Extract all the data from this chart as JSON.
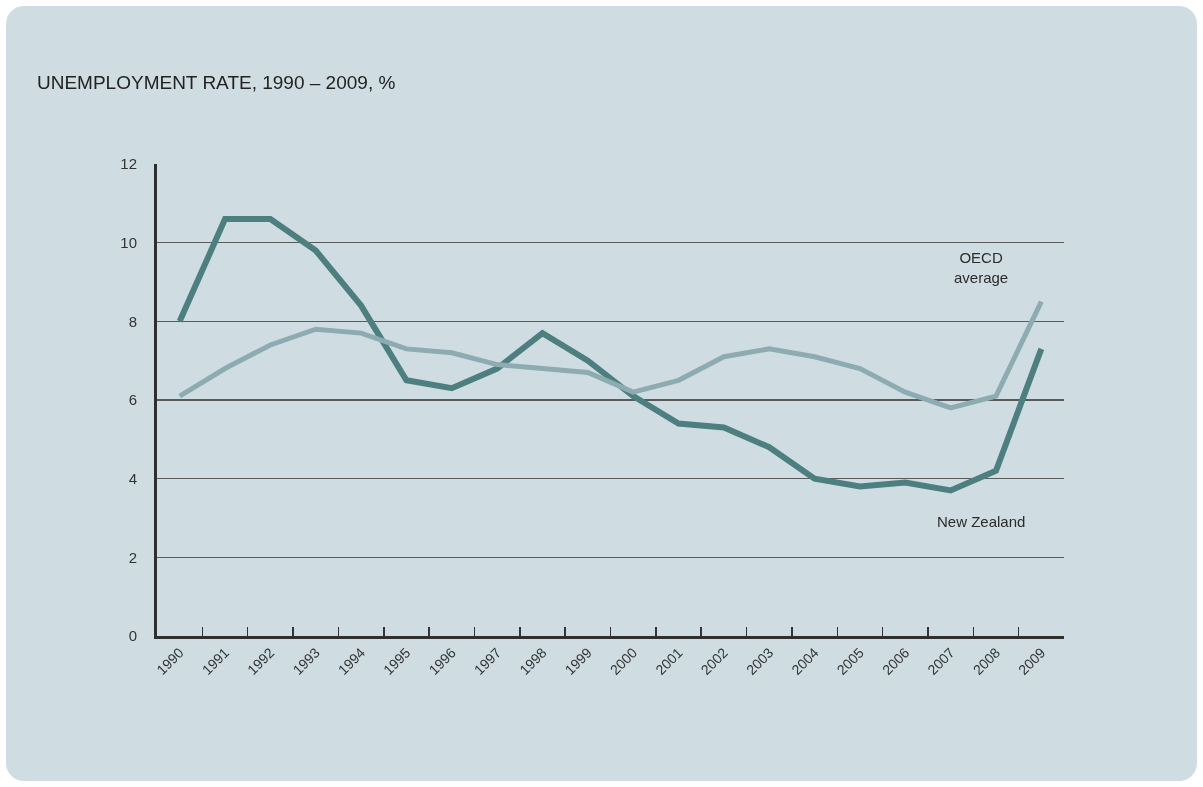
{
  "chart_data": {
    "type": "line",
    "title": "UNEMPLOYMENT RATE, 1990 – 2009, %",
    "categories": [
      "1990",
      "1991",
      "1992",
      "1993",
      "1994",
      "1995",
      "1996",
      "1997",
      "1998",
      "1999",
      "2000",
      "2001",
      "2002",
      "2003",
      "2004",
      "2005",
      "2006",
      "2007",
      "2008",
      "2009"
    ],
    "series": [
      {
        "name": "New Zealand",
        "color": "#4e7f80",
        "values": [
          8.0,
          10.6,
          10.6,
          9.8,
          8.4,
          6.5,
          6.3,
          6.8,
          7.7,
          7.0,
          6.1,
          5.4,
          5.3,
          4.8,
          4.0,
          3.8,
          3.9,
          3.7,
          4.2,
          7.3
        ]
      },
      {
        "name": "OECD average",
        "color": "#8dacb1",
        "values": [
          6.1,
          6.8,
          7.4,
          7.8,
          7.7,
          7.3,
          7.2,
          6.9,
          6.8,
          6.7,
          6.2,
          6.5,
          7.1,
          7.3,
          7.1,
          6.8,
          6.2,
          5.8,
          6.1,
          8.5
        ]
      }
    ],
    "ylim": [
      0,
      12
    ],
    "yticks": [
      0,
      2,
      4,
      6,
      8,
      10,
      12
    ],
    "grid": "y",
    "legend": false,
    "marker": "none",
    "line_style": "solid"
  }
}
